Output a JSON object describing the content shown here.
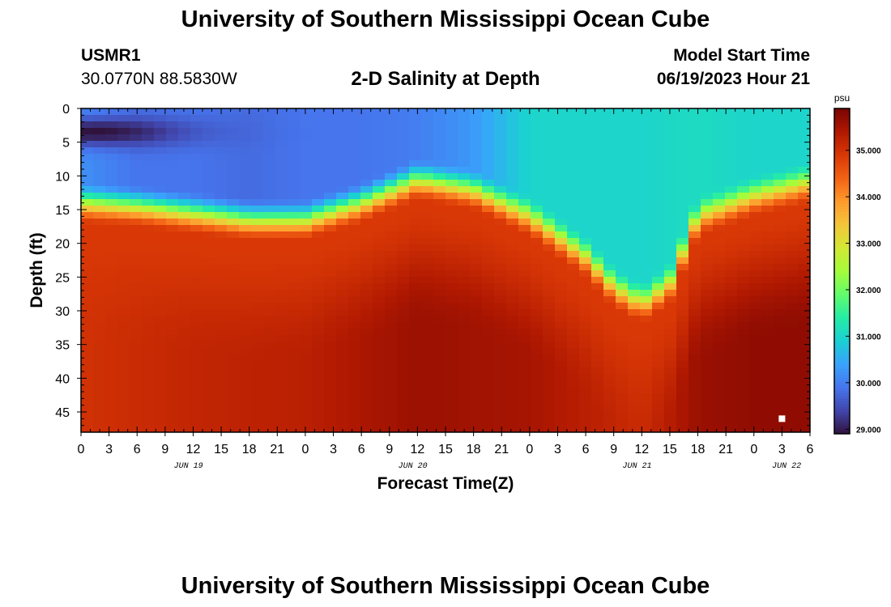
{
  "header": {
    "title": "University of Southern Mississippi Ocean Cube",
    "station_id": "USMR1",
    "coordinates": "30.0770N  88.5830W",
    "subtitle": "2-D Salinity at Depth",
    "model_start_label": "Model Start Time",
    "model_start_value": "06/19/2023 Hour 21"
  },
  "footer": {
    "title": "University of Southern Mississippi Ocean Cube"
  },
  "colors": {
    "colormap": [
      "#30123b",
      "#4145ab",
      "#4675ed",
      "#39a2fc",
      "#1bcfd4",
      "#24eca6",
      "#61fc6c",
      "#a4fc3b",
      "#d1e834",
      "#f3c63a",
      "#fe9b2d",
      "#f36315",
      "#d93806",
      "#b11901",
      "#7a0403"
    ],
    "marker": "#ffffff"
  },
  "chart_data": {
    "type": "heatmap",
    "title": "2-D Salinity at Depth",
    "xlabel": "Forecast Time(Z)",
    "ylabel": "Depth (ft)",
    "xlim_hours": [
      0,
      78
    ],
    "ylim": [
      0,
      48
    ],
    "y_inverted": true,
    "x_ticks": [
      0,
      3,
      6,
      9,
      12,
      15,
      18,
      21,
      24,
      27,
      30,
      33,
      36,
      39,
      42,
      45,
      48,
      51,
      54,
      57,
      60,
      63,
      66,
      69,
      72,
      75,
      78
    ],
    "x_tick_labels": [
      "0",
      "3",
      "6",
      "9",
      "12",
      "15",
      "18",
      "21",
      "0",
      "3",
      "6",
      "9",
      "12",
      "15",
      "18",
      "21",
      "0",
      "3",
      "6",
      "9",
      "12",
      "15",
      "18",
      "21",
      "0",
      "3",
      "6"
    ],
    "date_labels": [
      {
        "hour": 11.5,
        "label": "JUN 19"
      },
      {
        "hour": 35.5,
        "label": "JUN 20"
      },
      {
        "hour": 59.5,
        "label": "JUN 21"
      },
      {
        "hour": 75.5,
        "label": "JUN 22"
      }
    ],
    "y_ticks": [
      0,
      5,
      10,
      15,
      20,
      25,
      30,
      35,
      40,
      45
    ],
    "y_tick_labels": [
      "0",
      "5",
      "10",
      "15",
      "20",
      "25",
      "30",
      "35",
      "40",
      "45"
    ],
    "colorbar": {
      "unit": "psu",
      "range": [
        28.9,
        35.9
      ],
      "ticks": [
        29.0,
        30.0,
        31.0,
        32.0,
        33.0,
        34.0,
        35.0
      ],
      "tick_labels": [
        "29.000",
        "30.000",
        "31.000",
        "32.000",
        "33.000",
        "34.000",
        "35.000"
      ]
    },
    "current_time_marker": {
      "hour": 75,
      "depth": 46
    },
    "pycnocline_depth_ft": {
      "hours": [
        0,
        6,
        12,
        18,
        24,
        30,
        36,
        42,
        48,
        54,
        57,
        60,
        63,
        66,
        72,
        78
      ],
      "depth": [
        14,
        14.5,
        15.5,
        16.5,
        16.5,
        14,
        10.5,
        12,
        16,
        22,
        26.5,
        29,
        26,
        16,
        13,
        11
      ]
    },
    "surface_salinity_psu": {
      "hours": [
        0,
        6,
        12,
        18,
        24,
        30,
        36,
        42,
        48,
        54,
        60,
        66,
        72,
        78
      ],
      "value": [
        30.2,
        29.9,
        29.9,
        29.8,
        29.9,
        29.9,
        30.0,
        30.3,
        31.0,
        31.0,
        31.0,
        31.1,
        31.0,
        31.0
      ]
    },
    "surface_minimum_psu": {
      "hour": 1.5,
      "depth": 3.5,
      "value": 28.9
    },
    "bottom_salinity_psu": {
      "hours": [
        0,
        12,
        24,
        36,
        48,
        60,
        66,
        72,
        78
      ],
      "value": [
        35.0,
        35.2,
        35.3,
        35.6,
        35.5,
        35.1,
        35.6,
        35.7,
        35.7
      ]
    },
    "mid_layer_salinity_psu": 34.9
  }
}
